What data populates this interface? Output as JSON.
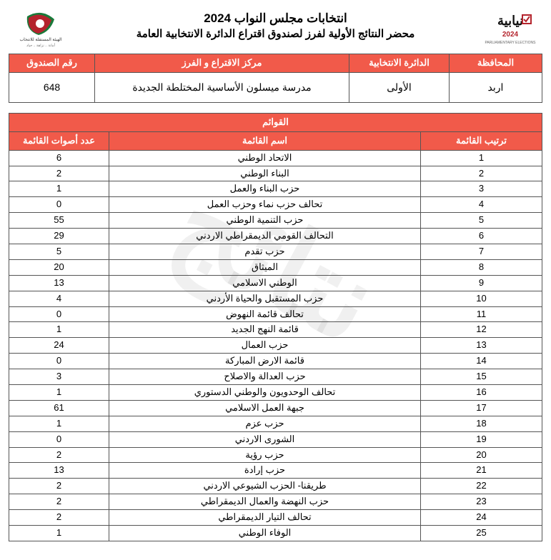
{
  "header": {
    "title_main": "انتخابات مجلس النواب 2024",
    "title_sub": "محضر النتائج الأولية لفرز لصندوق اقتراع الدائرة الانتخابية العامة"
  },
  "info": {
    "headers": {
      "governorate": "المحافظة",
      "district": "الدائرة الانتخابية",
      "center": "مركز الاقتراع و الفرز",
      "box": "رقم الصندوق"
    },
    "values": {
      "governorate": "اربد",
      "district": "الأولى",
      "center": "مدرسة ميسلون الأساسية المختلطة الجديدة",
      "box": "648"
    }
  },
  "lists": {
    "caption": "القوائم",
    "headers": {
      "rank": "ترتيب القائمة",
      "name": "اسم القائمة",
      "votes": "عدد أصوات القائمة"
    },
    "rows": [
      {
        "rank": "1",
        "name": "الاتحاد الوطني",
        "votes": "6"
      },
      {
        "rank": "2",
        "name": "البناء الوطني",
        "votes": "2"
      },
      {
        "rank": "3",
        "name": "حزب البناء والعمل",
        "votes": "1"
      },
      {
        "rank": "4",
        "name": "تحالف حزب نماء وحزب العمل",
        "votes": "0"
      },
      {
        "rank": "5",
        "name": "حزب التنمية الوطني",
        "votes": "55"
      },
      {
        "rank": "6",
        "name": "التحالف القومي الديمقراطي الاردني",
        "votes": "29"
      },
      {
        "rank": "7",
        "name": "حزب تقدم",
        "votes": "5"
      },
      {
        "rank": "8",
        "name": "الميثاق",
        "votes": "20"
      },
      {
        "rank": "9",
        "name": "الوطني الاسلامي",
        "votes": "13"
      },
      {
        "rank": "10",
        "name": "حزب المستقبل والحياة الأردني",
        "votes": "4"
      },
      {
        "rank": "11",
        "name": "تحالف قائمة النهوض",
        "votes": "0"
      },
      {
        "rank": "12",
        "name": "قائمة النهج الجديد",
        "votes": "1"
      },
      {
        "rank": "13",
        "name": "حزب العمال",
        "votes": "24"
      },
      {
        "rank": "14",
        "name": "قائمة الارض المباركة",
        "votes": "0"
      },
      {
        "rank": "15",
        "name": "حزب العدالة والاصلاح",
        "votes": "3"
      },
      {
        "rank": "16",
        "name": "تحالف الوحدويون والوطني الدستوري",
        "votes": "1"
      },
      {
        "rank": "17",
        "name": "جبهة العمل الاسلامي",
        "votes": "61"
      },
      {
        "rank": "18",
        "name": "حزب عزم",
        "votes": "1"
      },
      {
        "rank": "19",
        "name": "الشورى الاردني",
        "votes": "0"
      },
      {
        "rank": "20",
        "name": "حزب رؤية",
        "votes": "2"
      },
      {
        "rank": "21",
        "name": "حزب إرادة",
        "votes": "13"
      },
      {
        "rank": "22",
        "name": "طريقنا- الحزب الشيوعي الاردني",
        "votes": "2"
      },
      {
        "rank": "23",
        "name": "حزب النهضة والعمال الديمقراطي",
        "votes": "2"
      },
      {
        "rank": "24",
        "name": "تحالف التيار الديمقراطي",
        "votes": "2"
      },
      {
        "rank": "25",
        "name": "الوفاء الوطني",
        "votes": "1"
      }
    ]
  },
  "watermark_text": "نتائج"
}
